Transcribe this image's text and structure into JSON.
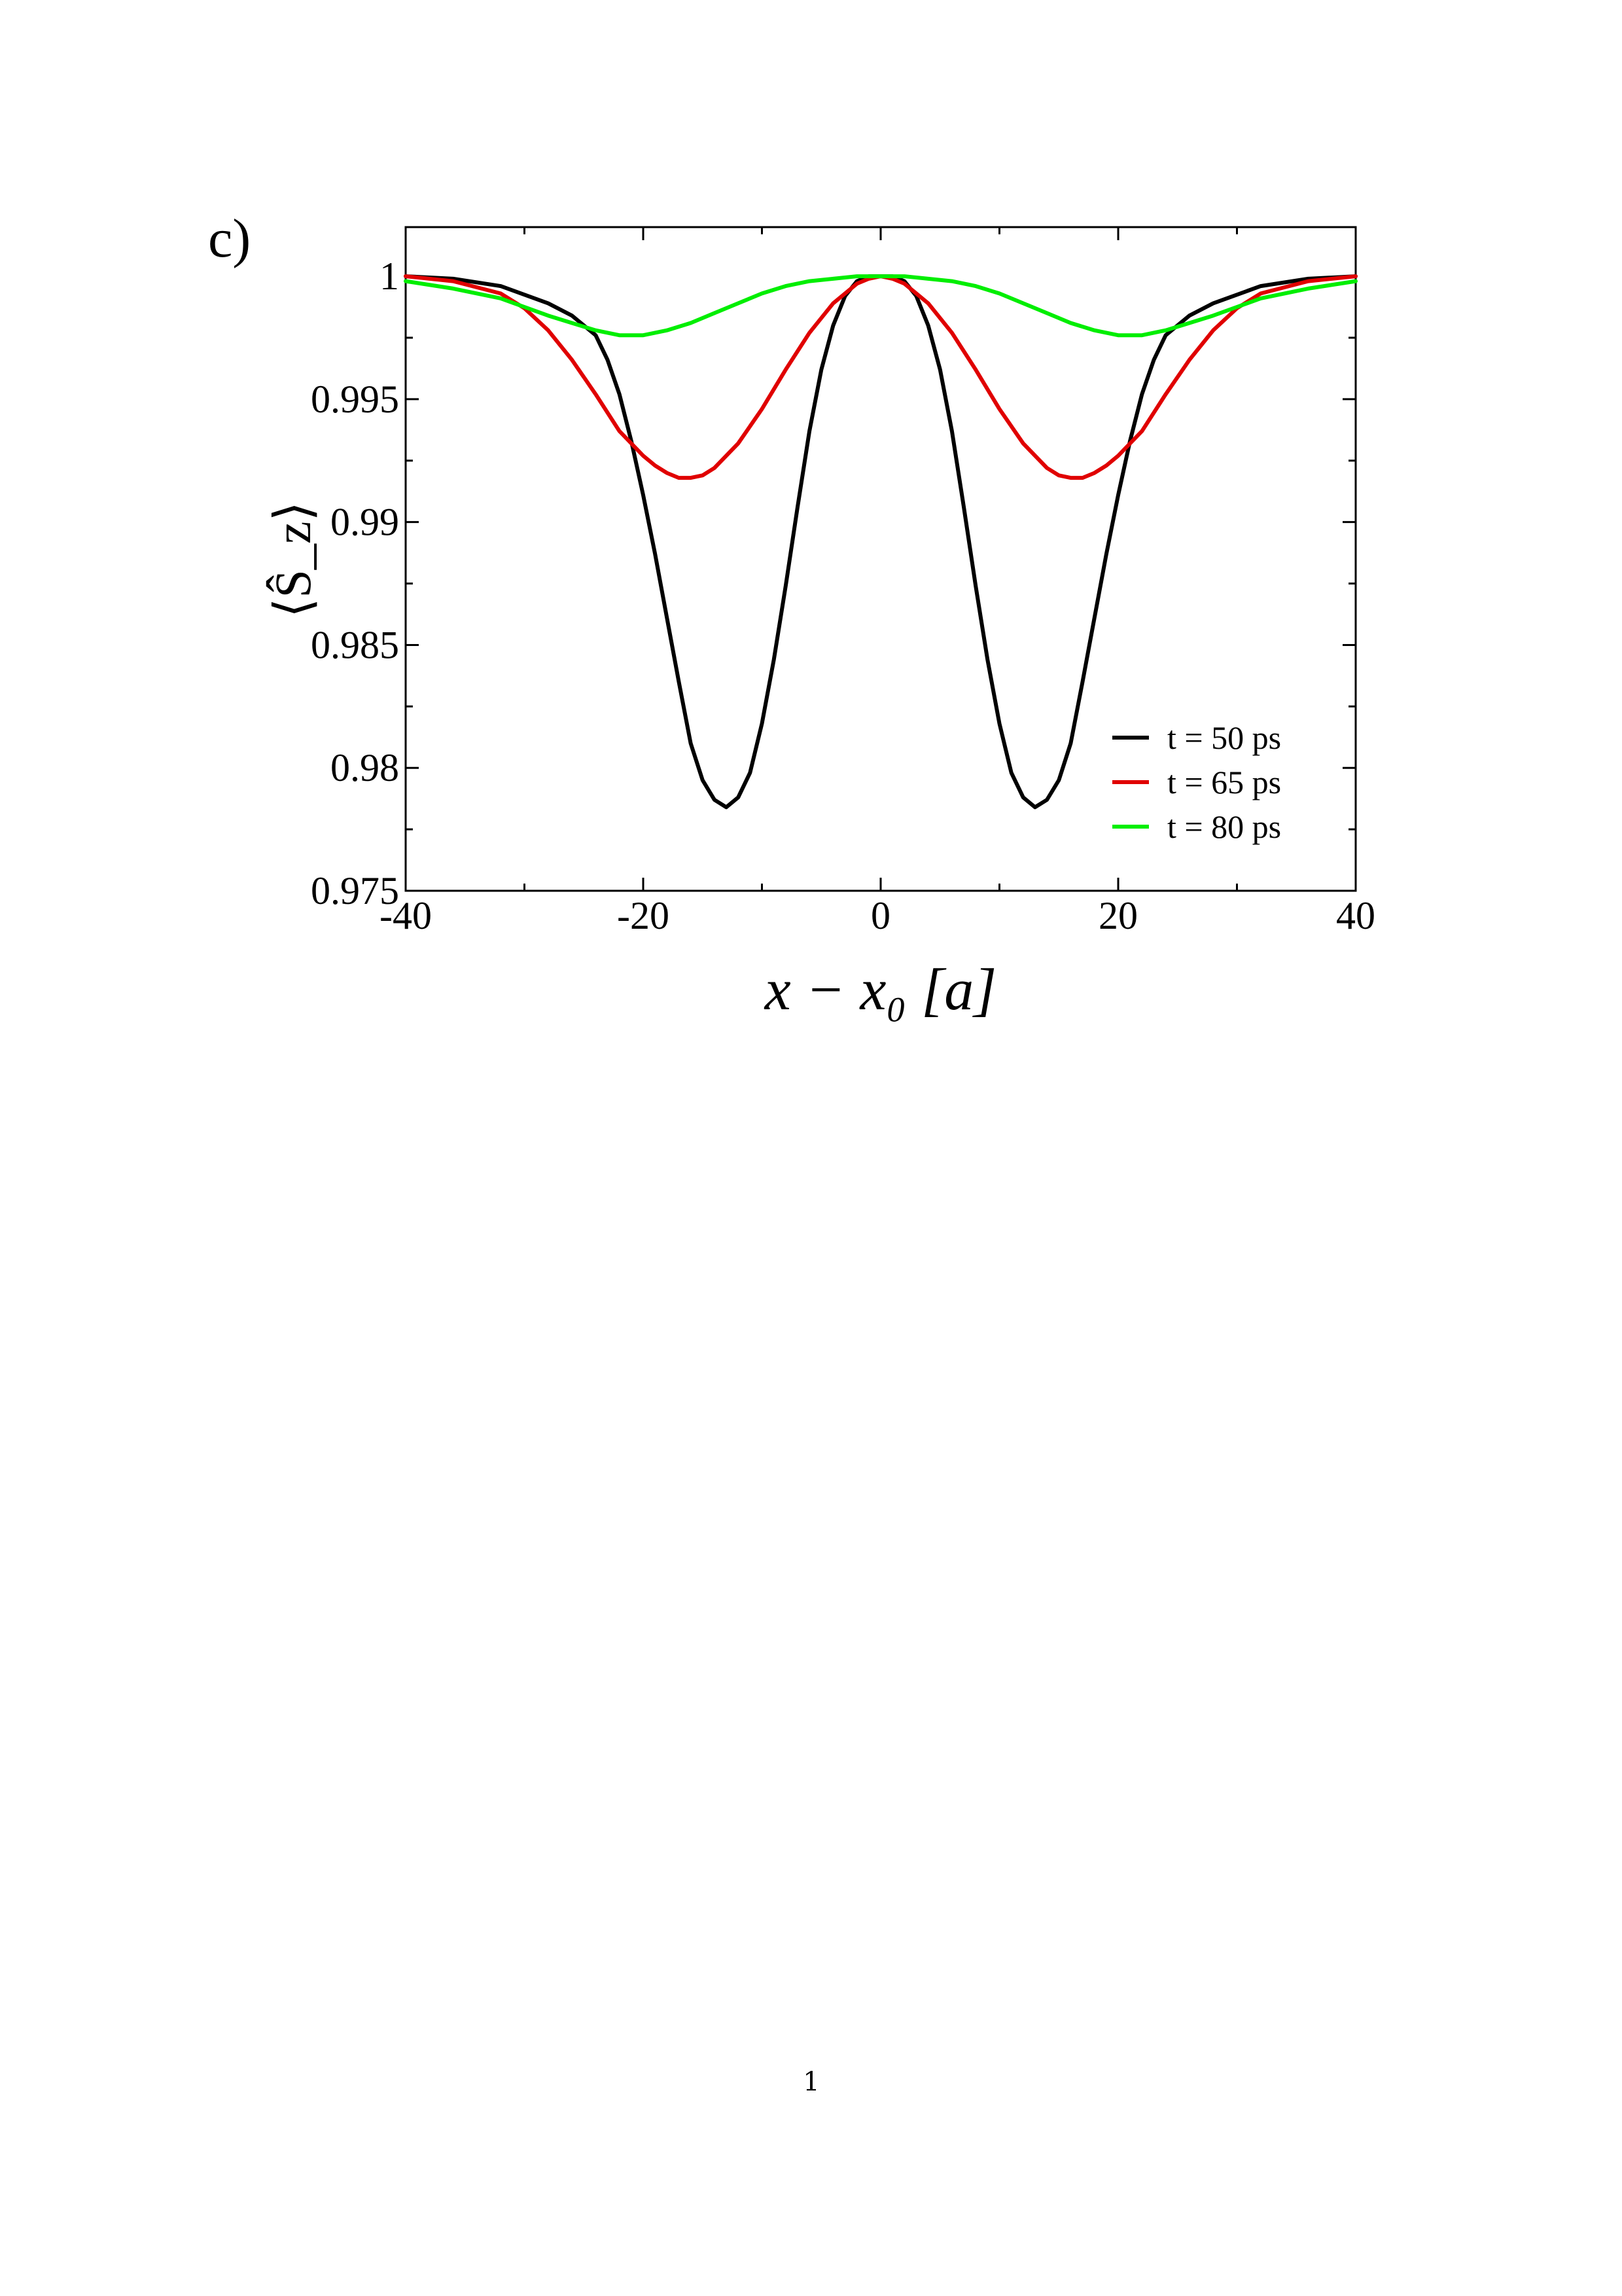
{
  "panel_label": "c)",
  "page_number": "1",
  "chart_data": {
    "type": "line",
    "xlabel": "x − x₀ [a]",
    "ylabel": "⟨Ŝ_z⟩",
    "xlim": [
      -40,
      40
    ],
    "ylim": [
      0.975,
      1.002
    ],
    "xticks": [
      -40,
      -20,
      0,
      20,
      40
    ],
    "xtick_labels": [
      "-40",
      "-20",
      "0",
      "20",
      "40"
    ],
    "yticks": [
      0.975,
      0.98,
      0.985,
      0.99,
      0.995,
      1
    ],
    "ytick_labels": [
      "0.975",
      "0.98",
      "0.985",
      "0.99",
      "0.995",
      "1"
    ],
    "grid": false,
    "legend_position": "bottom-right",
    "series": [
      {
        "name": "t = 50 ps",
        "color": "#000000",
        "x": [
          -40,
          -36,
          -32,
          -28,
          -26,
          -24,
          -23,
          -22,
          -21,
          -20,
          -19,
          -18,
          -17,
          -16,
          -15,
          -14,
          -13,
          -12,
          -11,
          -10,
          -9,
          -8,
          -7,
          -6,
          -5,
          -4,
          -3,
          -2,
          -1,
          0,
          1,
          2,
          3,
          4,
          5,
          6,
          7,
          8,
          9,
          10,
          11,
          12,
          13,
          14,
          15,
          16,
          17,
          18,
          19,
          20,
          21,
          22,
          23,
          24,
          26,
          28,
          32,
          36,
          40
        ],
        "y": [
          1.0,
          0.9999,
          0.9996,
          0.9989,
          0.9984,
          0.9976,
          0.9966,
          0.9952,
          0.9933,
          0.9911,
          0.9887,
          0.9861,
          0.9835,
          0.981,
          0.9795,
          0.9787,
          0.9784,
          0.9788,
          0.9798,
          0.9818,
          0.9844,
          0.9874,
          0.9906,
          0.9937,
          0.9962,
          0.998,
          0.9992,
          0.9998,
          1.0,
          1.0,
          1.0,
          0.9998,
          0.9992,
          0.998,
          0.9962,
          0.9937,
          0.9906,
          0.9874,
          0.9844,
          0.9818,
          0.9798,
          0.9788,
          0.9784,
          0.9787,
          0.9795,
          0.981,
          0.9835,
          0.9861,
          0.9887,
          0.9911,
          0.9933,
          0.9952,
          0.9966,
          0.9976,
          0.9984,
          0.9989,
          0.9996,
          0.9999,
          1.0
        ]
      },
      {
        "name": "t = 65 ps",
        "color": "#e00000",
        "x": [
          -40,
          -36,
          -32,
          -30,
          -28,
          -26,
          -24,
          -22,
          -20,
          -19,
          -18,
          -17,
          -16,
          -15,
          -14,
          -12,
          -10,
          -8,
          -6,
          -4,
          -2,
          -1,
          0,
          1,
          2,
          4,
          6,
          8,
          10,
          12,
          14,
          15,
          16,
          17,
          18,
          19,
          20,
          22,
          24,
          26,
          28,
          30,
          32,
          36,
          40
        ],
        "y": [
          1.0,
          0.9998,
          0.9993,
          0.9987,
          0.9978,
          0.9966,
          0.9952,
          0.9937,
          0.9927,
          0.9923,
          0.992,
          0.9918,
          0.9918,
          0.9919,
          0.9922,
          0.9932,
          0.9946,
          0.9962,
          0.9977,
          0.9989,
          0.9997,
          0.9999,
          1.0,
          0.9999,
          0.9997,
          0.9989,
          0.9977,
          0.9962,
          0.9946,
          0.9932,
          0.9922,
          0.9919,
          0.9918,
          0.9918,
          0.992,
          0.9923,
          0.9927,
          0.9937,
          0.9952,
          0.9966,
          0.9978,
          0.9987,
          0.9993,
          0.9998,
          1.0
        ]
      },
      {
        "name": "t = 80 ps",
        "color": "#00ee00",
        "x": [
          -40,
          -36,
          -32,
          -28,
          -26,
          -24,
          -22,
          -21,
          -20,
          -18,
          -16,
          -14,
          -12,
          -10,
          -8,
          -6,
          -4,
          -2,
          0,
          2,
          4,
          6,
          8,
          10,
          12,
          14,
          16,
          18,
          20,
          21,
          22,
          24,
          26,
          28,
          32,
          36,
          40
        ],
        "y": [
          0.9998,
          0.9995,
          0.9991,
          0.9984,
          0.9981,
          0.9978,
          0.9976,
          0.9976,
          0.9976,
          0.9978,
          0.9981,
          0.9985,
          0.9989,
          0.9993,
          0.9996,
          0.9998,
          0.9999,
          1.0,
          1.0,
          1.0,
          0.9999,
          0.9998,
          0.9996,
          0.9993,
          0.9989,
          0.9985,
          0.9981,
          0.9978,
          0.9976,
          0.9976,
          0.9976,
          0.9978,
          0.9981,
          0.9984,
          0.9991,
          0.9995,
          0.9998
        ]
      }
    ]
  }
}
